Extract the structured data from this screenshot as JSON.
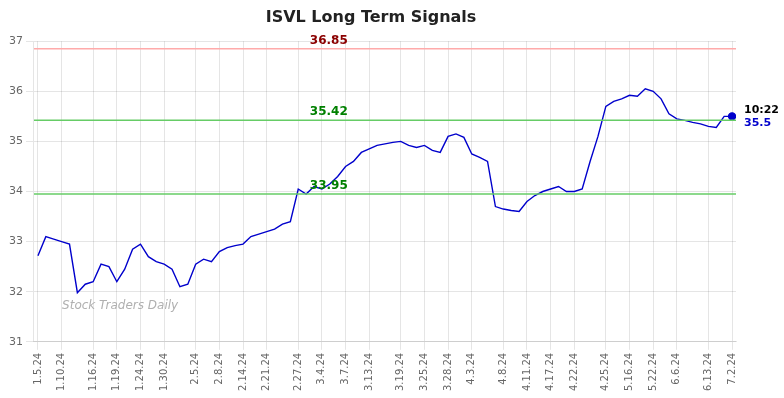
{
  "chart_data": {
    "type": "line",
    "title": "ISVL Long Term Signals",
    "categories": [
      "1.5.24",
      null,
      null,
      "1.10.24",
      null,
      null,
      null,
      "1.16.24",
      null,
      null,
      "1.19.24",
      null,
      null,
      "1.24.24",
      null,
      null,
      "1.30.24",
      null,
      null,
      null,
      "2.5.24",
      null,
      null,
      "2.8.24",
      null,
      null,
      "2.14.24",
      null,
      null,
      "2.21.24",
      null,
      null,
      null,
      "2.27.24",
      null,
      null,
      "3.4.24",
      null,
      null,
      "3.7.24",
      null,
      null,
      "3.13.24",
      null,
      null,
      null,
      "3.19.24",
      null,
      null,
      "3.25.24",
      null,
      null,
      "3.28.24",
      null,
      null,
      "4.3.24",
      null,
      null,
      null,
      "4.8.24",
      null,
      null,
      "4.11.24",
      null,
      null,
      "4.17.24",
      null,
      null,
      "4.22.24",
      null,
      null,
      null,
      "4.25.24",
      null,
      null,
      "5.16.24",
      null,
      null,
      "5.22.24",
      null,
      null,
      "6.6.24",
      null,
      null,
      null,
      "6.13.24",
      null,
      null,
      "7.2.24"
    ],
    "values": [
      32.72,
      33.1,
      33.05,
      33.0,
      32.95,
      31.98,
      32.15,
      32.2,
      32.55,
      32.5,
      32.2,
      32.45,
      32.85,
      32.95,
      32.7,
      32.6,
      32.55,
      32.45,
      32.1,
      32.15,
      32.55,
      32.65,
      32.6,
      32.8,
      32.88,
      32.92,
      32.95,
      33.1,
      33.15,
      33.2,
      33.25,
      33.35,
      33.4,
      34.05,
      33.95,
      34.1,
      34.05,
      34.15,
      34.3,
      34.5,
      34.6,
      34.78,
      34.85,
      34.92,
      34.95,
      34.98,
      35.0,
      34.92,
      34.88,
      34.92,
      34.82,
      34.78,
      35.1,
      35.15,
      35.08,
      34.75,
      34.68,
      34.6,
      33.7,
      33.65,
      33.62,
      33.6,
      33.8,
      33.92,
      34.0,
      34.05,
      34.1,
      34.0,
      34.0,
      34.05,
      34.6,
      35.1,
      35.7,
      35.8,
      35.85,
      35.92,
      35.9,
      36.05,
      36.0,
      35.85,
      35.55,
      35.45,
      35.42,
      35.38,
      35.35,
      35.3,
      35.28,
      35.5,
      35.5
    ],
    "color": "#0000cc",
    "ylim": [
      31,
      37
    ],
    "yticks": [
      31,
      32,
      33,
      34,
      35,
      36,
      37
    ],
    "grid": true,
    "hlines": [
      {
        "y": 36.85,
        "color": "#ffaaaa",
        "label": "36.85",
        "label_color": "darkred"
      },
      {
        "y": 35.42,
        "color": "#66cc66",
        "label": "35.42",
        "label_color": "green"
      },
      {
        "y": 33.95,
        "color": "#66cc66",
        "label": "33.95",
        "label_color": "green"
      }
    ],
    "last_point_labels": [
      {
        "text": "10:22",
        "color": "black"
      },
      {
        "text": "35.5",
        "color": "#0000cc"
      }
    ],
    "watermark": {
      "text": "Stock Traders Daily",
      "color": "#b0b0b0"
    }
  }
}
